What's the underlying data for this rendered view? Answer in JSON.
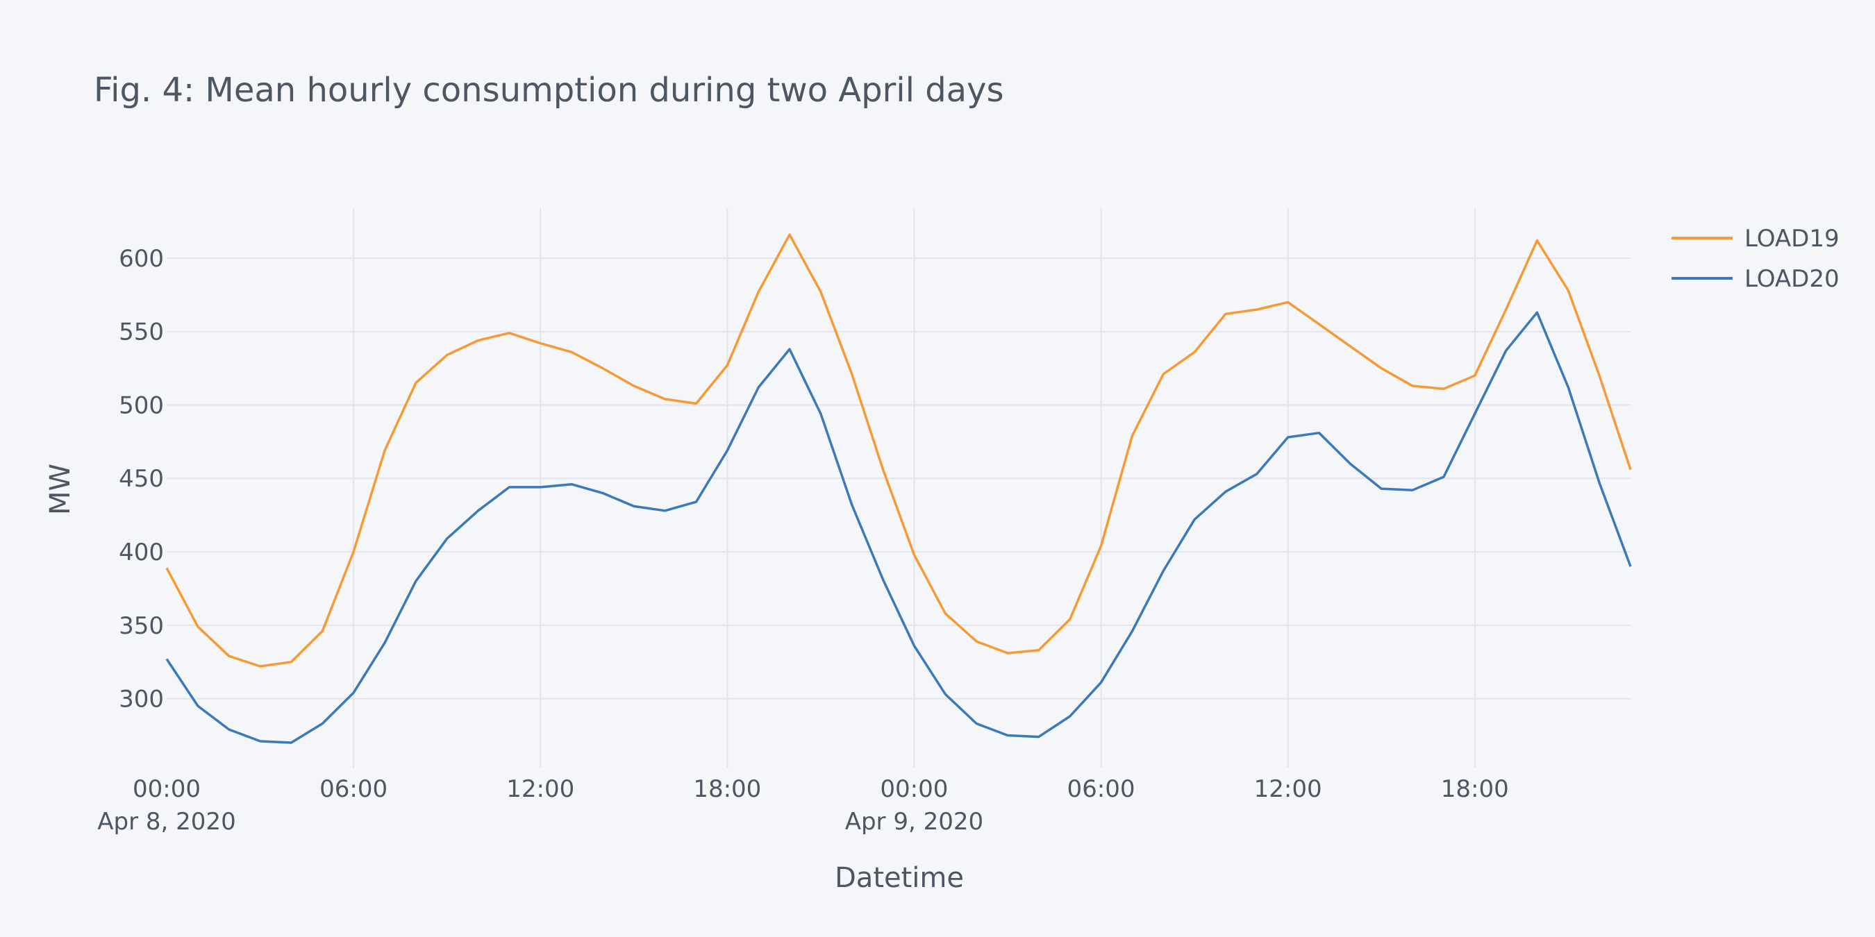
{
  "chart_data": {
    "type": "line",
    "title": "Fig. 4: Mean hourly consumption during two April days",
    "xlabel": "Datetime",
    "ylabel": "MW",
    "x_ticks": [
      {
        "hour": 0,
        "label": "00:00",
        "sublabel": "Apr 8, 2020"
      },
      {
        "hour": 6,
        "label": "06:00",
        "sublabel": ""
      },
      {
        "hour": 12,
        "label": "12:00",
        "sublabel": ""
      },
      {
        "hour": 18,
        "label": "18:00",
        "sublabel": ""
      },
      {
        "hour": 24,
        "label": "00:00",
        "sublabel": "Apr 9, 2020"
      },
      {
        "hour": 30,
        "label": "06:00",
        "sublabel": ""
      },
      {
        "hour": 36,
        "label": "12:00",
        "sublabel": ""
      },
      {
        "hour": 42,
        "label": "18:00",
        "sublabel": ""
      }
    ],
    "y_ticks": [
      300,
      350,
      400,
      450,
      500,
      550,
      600
    ],
    "xlim_hours": [
      0,
      47
    ],
    "ylim": [
      253,
      634
    ],
    "grid": true,
    "legend_position": "top-right",
    "series": [
      {
        "name": "LOAD19",
        "color": "#f59a36",
        "values": [
          389,
          349,
          329,
          322,
          325,
          346,
          400,
          469,
          515,
          534,
          544,
          549,
          542,
          536,
          525,
          513,
          504,
          501,
          527,
          577,
          616,
          577,
          521,
          456,
          398,
          358,
          339,
          331,
          333,
          354,
          404,
          479,
          521,
          536,
          562,
          565,
          570,
          555,
          540,
          525,
          513,
          511,
          520,
          565,
          612,
          578,
          520,
          456
        ]
      },
      {
        "name": "LOAD20",
        "color": "#3a7ab8",
        "values": [
          327,
          295,
          279,
          271,
          270,
          283,
          304,
          338,
          380,
          409,
          428,
          444,
          444,
          446,
          440,
          431,
          428,
          434,
          469,
          512,
          538,
          494,
          432,
          381,
          336,
          303,
          283,
          275,
          274,
          288,
          311,
          346,
          387,
          422,
          441,
          453,
          478,
          481,
          460,
          443,
          442,
          451,
          494,
          537,
          563,
          512,
          447,
          390
        ]
      }
    ]
  }
}
